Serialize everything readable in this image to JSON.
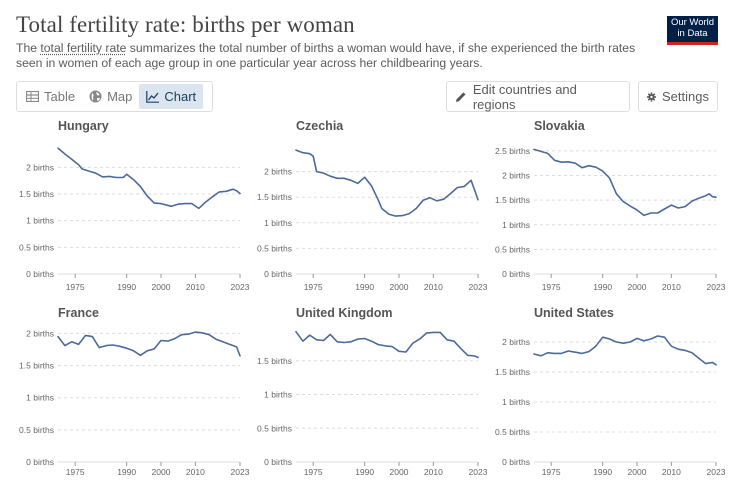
{
  "header": {
    "title": "Total fertility rate: births per woman",
    "subtitle_before": "The ",
    "subtitle_link": "total fertility rate",
    "subtitle_after": " summarizes the total number of births a woman would have, if she experienced the birth rates seen in women of each age group in one particular year across her childbearing years.",
    "logo_line1": "Our World",
    "logo_line2": "in Data"
  },
  "tabs": [
    {
      "label": "Table",
      "icon": "table-icon",
      "active": false
    },
    {
      "label": "Map",
      "icon": "globe-icon",
      "active": false
    },
    {
      "label": "Chart",
      "icon": "line-chart-icon",
      "active": true
    }
  ],
  "toolbar": {
    "edit_label": "Edit countries and regions",
    "settings_label": "Settings"
  },
  "colors": {
    "line": "#4c6a9c",
    "grid": "#dddddd",
    "logo_bg": "#002147",
    "logo_accent": "#ce261e"
  },
  "chart_data": [
    {
      "type": "line",
      "title": "Hungary",
      "x": [
        1970,
        1972,
        1974,
        1976,
        1977,
        1979,
        1981,
        1983,
        1985,
        1987,
        1989,
        1990,
        1992,
        1994,
        1996,
        1998,
        2000,
        2003,
        2005,
        2007,
        2009,
        2011,
        2013,
        2015,
        2017,
        2019,
        2021,
        2022,
        2023
      ],
      "y": [
        2.36,
        2.25,
        2.15,
        2.05,
        1.97,
        1.93,
        1.89,
        1.82,
        1.83,
        1.81,
        1.81,
        1.87,
        1.77,
        1.64,
        1.46,
        1.33,
        1.32,
        1.27,
        1.31,
        1.32,
        1.32,
        1.23,
        1.35,
        1.45,
        1.54,
        1.55,
        1.59,
        1.56,
        1.51
      ],
      "ylim": [
        0,
        2.4
      ],
      "yticks": [
        0,
        0.5,
        1,
        1.5,
        2
      ],
      "yticklabels": [
        "0 births",
        "0.5 births",
        "1 births",
        "1.5 births",
        "2 births"
      ],
      "xticks": [
        1975,
        1990,
        2000,
        2010,
        2023
      ]
    },
    {
      "type": "line",
      "title": "Czechia",
      "x": [
        1970,
        1972,
        1974,
        1975,
        1976,
        1978,
        1980,
        1982,
        1984,
        1986,
        1988,
        1990,
        1992,
        1994,
        1995,
        1997,
        1999,
        2001,
        2003,
        2005,
        2007,
        2009,
        2011,
        2013,
        2015,
        2017,
        2019,
        2021,
        2022,
        2023
      ],
      "y": [
        2.42,
        2.37,
        2.35,
        2.3,
        2.0,
        1.97,
        1.91,
        1.87,
        1.87,
        1.83,
        1.77,
        1.89,
        1.72,
        1.44,
        1.28,
        1.17,
        1.13,
        1.14,
        1.18,
        1.28,
        1.44,
        1.49,
        1.43,
        1.46,
        1.57,
        1.69,
        1.71,
        1.83,
        1.64,
        1.45
      ],
      "ylim": [
        0,
        2.5
      ],
      "yticks": [
        0,
        0.5,
        1,
        1.5,
        2
      ],
      "yticklabels": [
        "0 births",
        "0.5 births",
        "1 births",
        "1.5 births",
        "2 births"
      ],
      "xticks": [
        1975,
        1990,
        2000,
        2010,
        2023
      ]
    },
    {
      "type": "line",
      "title": "Slovakia",
      "x": [
        1970,
        1972,
        1974,
        1976,
        1978,
        1980,
        1982,
        1984,
        1986,
        1988,
        1990,
        1992,
        1994,
        1996,
        1998,
        2000,
        2002,
        2004,
        2006,
        2008,
        2010,
        2012,
        2014,
        2016,
        2018,
        2020,
        2021,
        2022,
        2023
      ],
      "y": [
        2.53,
        2.49,
        2.45,
        2.31,
        2.27,
        2.28,
        2.25,
        2.16,
        2.2,
        2.17,
        2.09,
        1.95,
        1.63,
        1.47,
        1.38,
        1.3,
        1.19,
        1.24,
        1.24,
        1.32,
        1.4,
        1.34,
        1.37,
        1.48,
        1.54,
        1.59,
        1.63,
        1.57,
        1.56
      ],
      "ylim": [
        0,
        2.6
      ],
      "yticks": [
        0,
        0.5,
        1,
        1.5,
        2,
        2.5
      ],
      "yticklabels": [
        "0 births",
        "0.5 births",
        "1 births",
        "1.5 births",
        "2 births",
        "2.5 births"
      ],
      "xticks": [
        1975,
        1990,
        2000,
        2010,
        2023
      ]
    },
    {
      "type": "line",
      "title": "France",
      "x": [
        1970,
        1972,
        1974,
        1976,
        1978,
        1980,
        1982,
        1984,
        1986,
        1988,
        1990,
        1992,
        1994,
        1996,
        1998,
        2000,
        2002,
        2004,
        2006,
        2008,
        2010,
        2012,
        2014,
        2016,
        2018,
        2020,
        2022,
        2023
      ],
      "y": [
        1.95,
        1.81,
        1.87,
        1.83,
        1.97,
        1.95,
        1.78,
        1.81,
        1.82,
        1.8,
        1.77,
        1.73,
        1.66,
        1.73,
        1.76,
        1.89,
        1.88,
        1.92,
        1.98,
        1.99,
        2.02,
        2.01,
        1.98,
        1.91,
        1.87,
        1.83,
        1.79,
        1.65
      ],
      "ylim": [
        0,
        2.1
      ],
      "yticks": [
        0,
        0.5,
        1,
        1.5,
        2
      ],
      "yticklabels": [
        "0 births",
        "0.5 births",
        "1 births",
        "1.5 births",
        "2 births"
      ],
      "xticks": [
        1975,
        1990,
        2000,
        2010,
        2023
      ]
    },
    {
      "type": "line",
      "title": "United Kingdom",
      "x": [
        1970,
        1972,
        1974,
        1976,
        1978,
        1980,
        1982,
        1984,
        1986,
        1988,
        1990,
        1992,
        1994,
        1996,
        1998,
        2000,
        2002,
        2004,
        2006,
        2008,
        2010,
        2012,
        2014,
        2016,
        2018,
        2020,
        2022,
        2023
      ],
      "y": [
        1.93,
        1.79,
        1.88,
        1.81,
        1.8,
        1.89,
        1.78,
        1.77,
        1.78,
        1.82,
        1.83,
        1.79,
        1.74,
        1.72,
        1.71,
        1.64,
        1.63,
        1.76,
        1.82,
        1.91,
        1.92,
        1.92,
        1.81,
        1.79,
        1.68,
        1.58,
        1.57,
        1.55
      ],
      "ylim": [
        0,
        2.0
      ],
      "yticks": [
        0,
        0.5,
        1,
        1.5
      ],
      "yticklabels": [
        "0 births",
        "0.5 births",
        "1 births",
        "1.5 births"
      ],
      "xticks": [
        1975,
        1990,
        2000,
        2010,
        2023
      ]
    },
    {
      "type": "line",
      "title": "United States",
      "x": [
        1970,
        1972,
        1974,
        1976,
        1978,
        1980,
        1982,
        1984,
        1986,
        1988,
        1990,
        1992,
        1994,
        1996,
        1998,
        2000,
        2002,
        2004,
        2006,
        2008,
        2010,
        2012,
        2014,
        2016,
        2018,
        2020,
        2022,
        2023
      ],
      "y": [
        1.8,
        1.77,
        1.82,
        1.81,
        1.81,
        1.85,
        1.83,
        1.81,
        1.84,
        1.93,
        2.08,
        2.05,
        2.0,
        1.98,
        2.0,
        2.06,
        2.02,
        2.05,
        2.1,
        2.08,
        1.93,
        1.88,
        1.86,
        1.82,
        1.73,
        1.64,
        1.66,
        1.62
      ],
      "ylim": [
        0,
        2.25
      ],
      "yticks": [
        0,
        0.5,
        1,
        1.5,
        2
      ],
      "yticklabels": [
        "0 births",
        "0.5 births",
        "1 births",
        "1.5 births",
        "2 births"
      ],
      "xticks": [
        1975,
        1990,
        2000,
        2010,
        2023
      ]
    }
  ]
}
